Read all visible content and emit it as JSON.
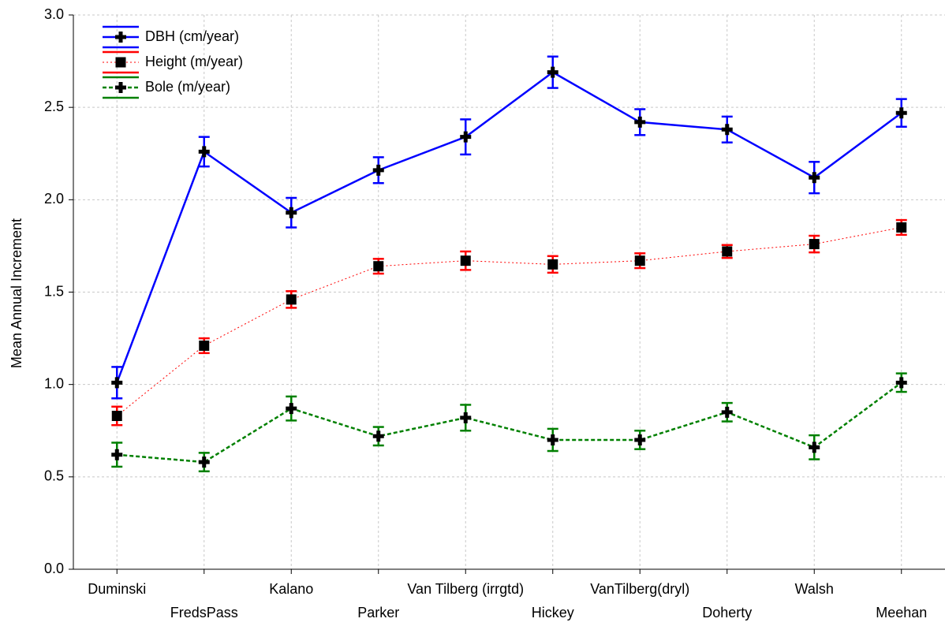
{
  "chart_data": {
    "type": "line",
    "ylabel": "Mean Annual Increment",
    "categories": [
      "Duminski",
      "FredsPass",
      "Kalano",
      "Parker",
      "Van Tilberg (irrgtd)",
      "Hickey",
      "VanTilberg(dryl)",
      "Doherty",
      "Walsh",
      "Meehan"
    ],
    "series": [
      {
        "name": "DBH (cm/year)",
        "color": "#0000ff",
        "marker": "plus",
        "dash": "solid",
        "values": [
          1.01,
          2.26,
          1.93,
          2.16,
          2.34,
          2.69,
          2.42,
          2.38,
          2.12,
          2.47
        ],
        "errors": [
          0.085,
          0.08,
          0.08,
          0.07,
          0.095,
          0.085,
          0.07,
          0.07,
          0.085,
          0.075
        ]
      },
      {
        "name": "Height (m/year)",
        "color": "#ff0000",
        "marker": "square",
        "dash": "dotted",
        "values": [
          0.83,
          1.21,
          1.46,
          1.64,
          1.67,
          1.65,
          1.67,
          1.72,
          1.76,
          1.85
        ],
        "errors": [
          0.05,
          0.04,
          0.045,
          0.04,
          0.05,
          0.045,
          0.04,
          0.035,
          0.045,
          0.04
        ]
      },
      {
        "name": "Bole (m/year)",
        "color": "#008000",
        "marker": "plus",
        "dash": "dashed",
        "values": [
          0.62,
          0.58,
          0.87,
          0.72,
          0.82,
          0.7,
          0.7,
          0.85,
          0.66,
          1.01
        ],
        "errors": [
          0.065,
          0.05,
          0.065,
          0.05,
          0.07,
          0.06,
          0.05,
          0.05,
          0.065,
          0.05
        ]
      }
    ],
    "ylim": [
      0,
      3
    ],
    "yticks": [
      {
        "value": 0,
        "label": "0.0"
      },
      0.5,
      {
        "value": 1,
        "label": "1.0"
      },
      1.5,
      {
        "value": 2,
        "label": "2.0"
      },
      2.5,
      {
        "value": 3,
        "label": "3.0"
      }
    ],
    "grid": true,
    "legend": "upper left"
  }
}
